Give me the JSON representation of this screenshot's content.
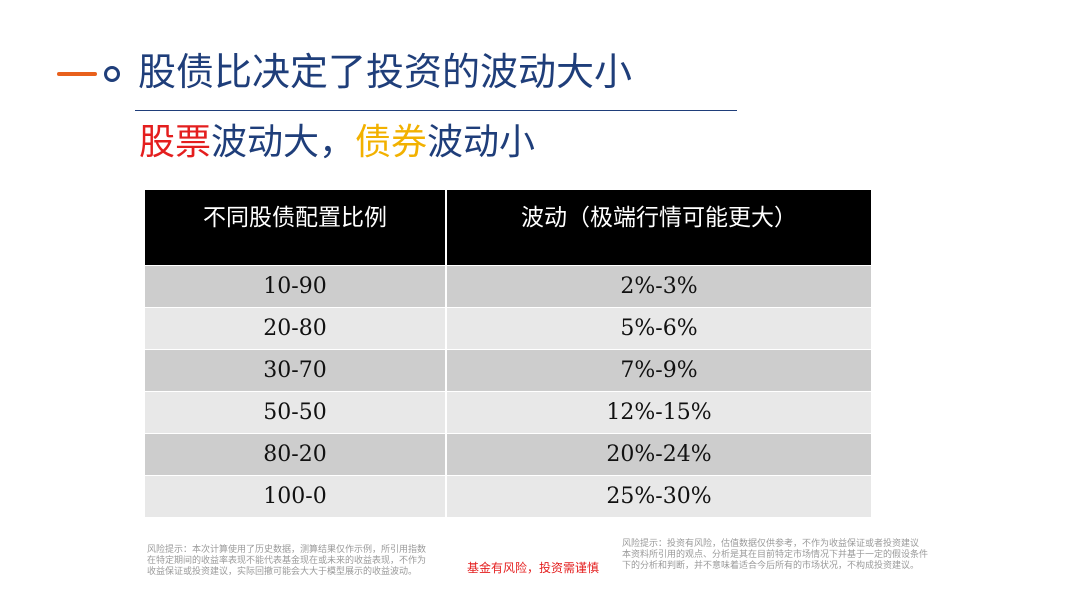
{
  "header": {
    "title": "股债比决定了投资的波动大小",
    "accent_color": "#E8601C",
    "brand_color": "#1F3E7A"
  },
  "subtitle": {
    "part1": "股票",
    "part2": "波动大，",
    "part3": "债券",
    "part4": "波动小",
    "red_color": "#E41E1E",
    "yellow_color": "#F2B100"
  },
  "table": {
    "headers": [
      "不同股债配置比例",
      "波动（极端行情可能更大）"
    ],
    "rows": [
      [
        "10-90",
        "2%-3%"
      ],
      [
        "20-80",
        "5%-6%"
      ],
      [
        "30-70",
        "7%-9%"
      ],
      [
        "50-50",
        "12%-15%"
      ],
      [
        "80-20",
        "20%-24%"
      ],
      [
        "100-0",
        "25%-30%"
      ]
    ]
  },
  "footer": {
    "risk_left": [
      "风险提示：本次计算使用了历史数据，测算结果仅作示例，所引用指数",
      "在特定期间的收益率表现不能代表基金现在或未来的收益表现，不作为",
      "收益保证或投资建议，实际回撤可能会大大于模型展示的收益波动。"
    ],
    "slogan": "基金有风险，投资需谨慎",
    "risk_right": [
      "风险提示：投资有风险，估值数据仅供参考，不作为收益保证或者投资建议",
      "本资料所引用的观点、分析是其在目前特定市场情况下并基于一定的假设条件",
      "下的分析和判断，并不意味着适合今后所有的市场状况，不构成投资建议。"
    ]
  }
}
